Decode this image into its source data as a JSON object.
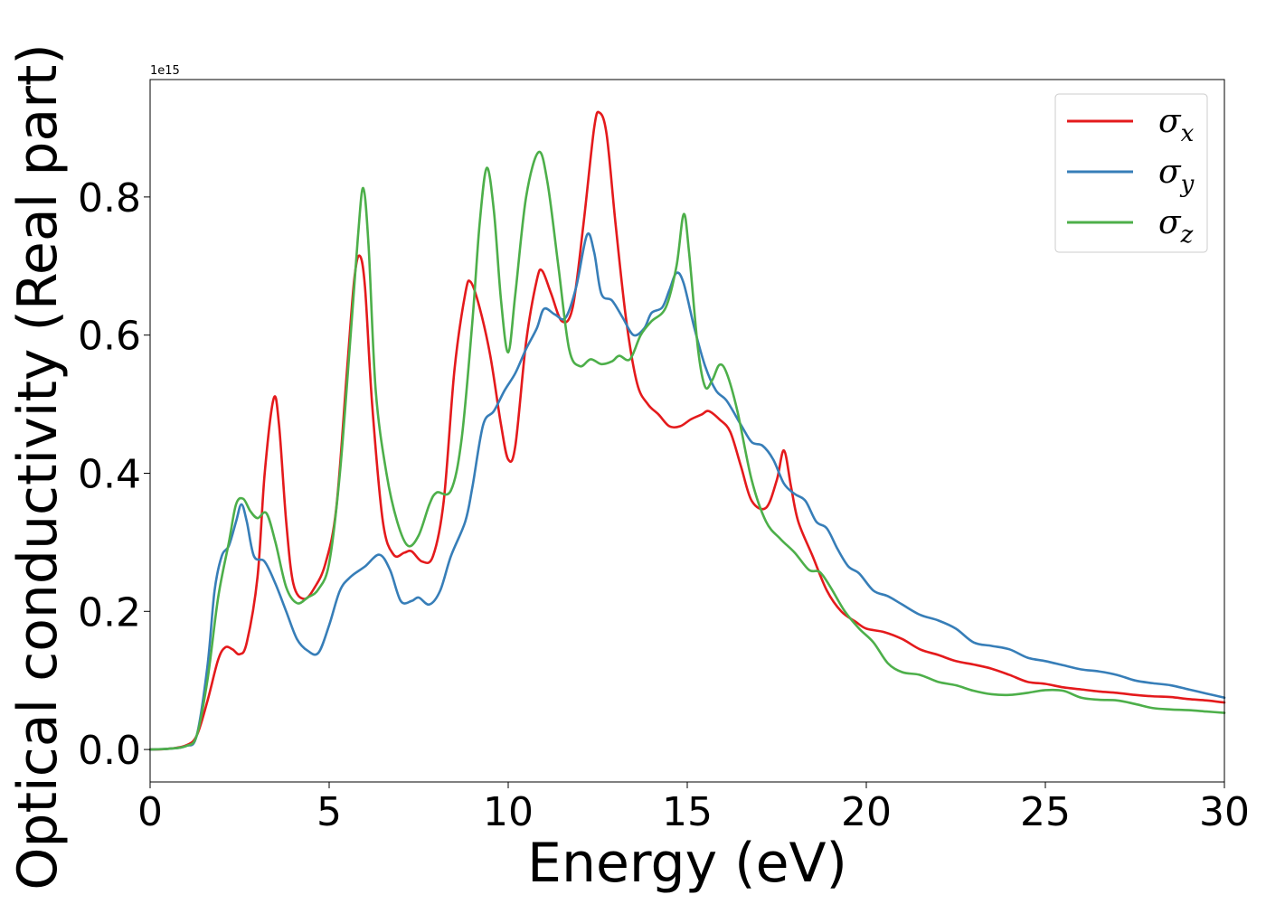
{
  "chart_data": {
    "type": "line",
    "xlabel": "Energy (eV)",
    "ylabel": "Optical conductivity (Real part)",
    "y_offset_text": "1e15",
    "xlim": [
      0,
      30
    ],
    "ylim": [
      -0.047,
      0.97
    ],
    "xticks": [
      0,
      5,
      10,
      15,
      20,
      25,
      30
    ],
    "xtick_labels": [
      "0",
      "5",
      "10",
      "15",
      "20",
      "25",
      "30"
    ],
    "yticks": [
      0.0,
      0.2,
      0.4,
      0.6,
      0.8
    ],
    "ytick_labels": [
      "0.0",
      "0.2",
      "0.4",
      "0.6",
      "0.8"
    ],
    "grid": false,
    "legend_position": "top-right",
    "series": [
      {
        "name": "σx",
        "legend_base": "σ",
        "legend_sub": "x",
        "color": "#e41a1c",
        "points": [
          [
            0,
            0.0
          ],
          [
            0.5,
            0.001
          ],
          [
            1.0,
            0.006
          ],
          [
            1.3,
            0.02
          ],
          [
            1.6,
            0.07
          ],
          [
            1.9,
            0.13
          ],
          [
            2.1,
            0.148
          ],
          [
            2.3,
            0.145
          ],
          [
            2.5,
            0.138
          ],
          [
            2.7,
            0.155
          ],
          [
            3.0,
            0.25
          ],
          [
            3.2,
            0.4
          ],
          [
            3.45,
            0.508
          ],
          [
            3.6,
            0.47
          ],
          [
            3.8,
            0.33
          ],
          [
            4.0,
            0.24
          ],
          [
            4.3,
            0.218
          ],
          [
            4.6,
            0.235
          ],
          [
            4.9,
            0.27
          ],
          [
            5.2,
            0.35
          ],
          [
            5.5,
            0.55
          ],
          [
            5.7,
            0.68
          ],
          [
            5.85,
            0.715
          ],
          [
            6.0,
            0.67
          ],
          [
            6.2,
            0.5
          ],
          [
            6.5,
            0.33
          ],
          [
            6.8,
            0.282
          ],
          [
            7.1,
            0.285
          ],
          [
            7.3,
            0.287
          ],
          [
            7.6,
            0.272
          ],
          [
            7.9,
            0.28
          ],
          [
            8.2,
            0.36
          ],
          [
            8.5,
            0.55
          ],
          [
            8.8,
            0.66
          ],
          [
            8.95,
            0.677
          ],
          [
            9.2,
            0.64
          ],
          [
            9.5,
            0.57
          ],
          [
            9.8,
            0.47
          ],
          [
            10.0,
            0.42
          ],
          [
            10.2,
            0.44
          ],
          [
            10.5,
            0.59
          ],
          [
            10.8,
            0.68
          ],
          [
            10.95,
            0.693
          ],
          [
            11.2,
            0.66
          ],
          [
            11.5,
            0.62
          ],
          [
            11.8,
            0.64
          ],
          [
            12.1,
            0.76
          ],
          [
            12.4,
            0.9
          ],
          [
            12.55,
            0.922
          ],
          [
            12.75,
            0.89
          ],
          [
            13.0,
            0.76
          ],
          [
            13.3,
            0.62
          ],
          [
            13.6,
            0.53
          ],
          [
            13.9,
            0.5
          ],
          [
            14.2,
            0.485
          ],
          [
            14.5,
            0.468
          ],
          [
            14.8,
            0.468
          ],
          [
            15.1,
            0.478
          ],
          [
            15.4,
            0.485
          ],
          [
            15.6,
            0.49
          ],
          [
            15.9,
            0.478
          ],
          [
            16.2,
            0.46
          ],
          [
            16.5,
            0.41
          ],
          [
            16.8,
            0.36
          ],
          [
            17.2,
            0.35
          ],
          [
            17.5,
            0.39
          ],
          [
            17.7,
            0.433
          ],
          [
            17.9,
            0.38
          ],
          [
            18.1,
            0.33
          ],
          [
            18.5,
            0.28
          ],
          [
            18.9,
            0.23
          ],
          [
            19.3,
            0.2
          ],
          [
            19.7,
            0.185
          ],
          [
            20.0,
            0.175
          ],
          [
            20.5,
            0.17
          ],
          [
            21.0,
            0.16
          ],
          [
            21.5,
            0.145
          ],
          [
            22.0,
            0.137
          ],
          [
            22.5,
            0.128
          ],
          [
            23.0,
            0.123
          ],
          [
            23.5,
            0.117
          ],
          [
            24.0,
            0.108
          ],
          [
            24.5,
            0.098
          ],
          [
            25.0,
            0.095
          ],
          [
            25.5,
            0.09
          ],
          [
            26.0,
            0.087
          ],
          [
            26.5,
            0.084
          ],
          [
            27.0,
            0.082
          ],
          [
            27.5,
            0.079
          ],
          [
            28.0,
            0.077
          ],
          [
            28.5,
            0.076
          ],
          [
            29.0,
            0.073
          ],
          [
            29.5,
            0.071
          ],
          [
            30.0,
            0.068
          ]
        ]
      },
      {
        "name": "σy",
        "legend_base": "σ",
        "legend_sub": "y",
        "color": "#377eb8",
        "points": [
          [
            0,
            0.0
          ],
          [
            0.5,
            0.001
          ],
          [
            1.0,
            0.005
          ],
          [
            1.3,
            0.02
          ],
          [
            1.6,
            0.12
          ],
          [
            1.8,
            0.23
          ],
          [
            2.0,
            0.28
          ],
          [
            2.2,
            0.295
          ],
          [
            2.4,
            0.33
          ],
          [
            2.55,
            0.355
          ],
          [
            2.7,
            0.33
          ],
          [
            2.9,
            0.28
          ],
          [
            3.2,
            0.272
          ],
          [
            3.5,
            0.24
          ],
          [
            3.8,
            0.2
          ],
          [
            4.1,
            0.16
          ],
          [
            4.4,
            0.143
          ],
          [
            4.7,
            0.14
          ],
          [
            5.0,
            0.18
          ],
          [
            5.3,
            0.23
          ],
          [
            5.6,
            0.25
          ],
          [
            6.0,
            0.265
          ],
          [
            6.4,
            0.282
          ],
          [
            6.7,
            0.26
          ],
          [
            7.0,
            0.215
          ],
          [
            7.3,
            0.215
          ],
          [
            7.5,
            0.22
          ],
          [
            7.8,
            0.21
          ],
          [
            8.1,
            0.23
          ],
          [
            8.4,
            0.28
          ],
          [
            8.8,
            0.33
          ],
          [
            9.0,
            0.38
          ],
          [
            9.3,
            0.47
          ],
          [
            9.6,
            0.49
          ],
          [
            9.9,
            0.52
          ],
          [
            10.2,
            0.545
          ],
          [
            10.5,
            0.58
          ],
          [
            10.8,
            0.61
          ],
          [
            11.0,
            0.638
          ],
          [
            11.3,
            0.63
          ],
          [
            11.6,
            0.625
          ],
          [
            11.9,
            0.67
          ],
          [
            12.2,
            0.745
          ],
          [
            12.4,
            0.72
          ],
          [
            12.6,
            0.66
          ],
          [
            12.9,
            0.65
          ],
          [
            13.2,
            0.625
          ],
          [
            13.5,
            0.6
          ],
          [
            13.8,
            0.61
          ],
          [
            14.0,
            0.632
          ],
          [
            14.3,
            0.64
          ],
          [
            14.5,
            0.665
          ],
          [
            14.7,
            0.69
          ],
          [
            14.9,
            0.675
          ],
          [
            15.2,
            0.61
          ],
          [
            15.5,
            0.555
          ],
          [
            15.8,
            0.52
          ],
          [
            16.1,
            0.505
          ],
          [
            16.5,
            0.47
          ],
          [
            16.8,
            0.445
          ],
          [
            17.1,
            0.44
          ],
          [
            17.4,
            0.42
          ],
          [
            17.7,
            0.385
          ],
          [
            18.0,
            0.37
          ],
          [
            18.3,
            0.36
          ],
          [
            18.6,
            0.33
          ],
          [
            18.9,
            0.32
          ],
          [
            19.2,
            0.29
          ],
          [
            19.5,
            0.265
          ],
          [
            19.8,
            0.255
          ],
          [
            20.2,
            0.23
          ],
          [
            20.6,
            0.222
          ],
          [
            21.0,
            0.21
          ],
          [
            21.5,
            0.195
          ],
          [
            22.0,
            0.187
          ],
          [
            22.5,
            0.175
          ],
          [
            23.0,
            0.155
          ],
          [
            23.5,
            0.15
          ],
          [
            24.0,
            0.145
          ],
          [
            24.5,
            0.133
          ],
          [
            25.0,
            0.128
          ],
          [
            25.5,
            0.122
          ],
          [
            26.0,
            0.116
          ],
          [
            26.5,
            0.113
          ],
          [
            27.0,
            0.108
          ],
          [
            27.5,
            0.1
          ],
          [
            28.0,
            0.096
          ],
          [
            28.5,
            0.093
          ],
          [
            29.0,
            0.087
          ],
          [
            29.5,
            0.081
          ],
          [
            30.0,
            0.075
          ]
        ]
      },
      {
        "name": "σz",
        "legend_base": "σ",
        "legend_sub": "z",
        "color": "#4daf4a",
        "points": [
          [
            0,
            0.0
          ],
          [
            0.5,
            0.001
          ],
          [
            1.0,
            0.005
          ],
          [
            1.3,
            0.02
          ],
          [
            1.6,
            0.1
          ],
          [
            1.9,
            0.22
          ],
          [
            2.2,
            0.3
          ],
          [
            2.4,
            0.355
          ],
          [
            2.6,
            0.363
          ],
          [
            2.8,
            0.345
          ],
          [
            3.0,
            0.335
          ],
          [
            3.25,
            0.342
          ],
          [
            3.5,
            0.3
          ],
          [
            3.8,
            0.235
          ],
          [
            4.1,
            0.212
          ],
          [
            4.4,
            0.22
          ],
          [
            4.7,
            0.232
          ],
          [
            5.0,
            0.27
          ],
          [
            5.3,
            0.4
          ],
          [
            5.6,
            0.6
          ],
          [
            5.8,
            0.74
          ],
          [
            5.95,
            0.813
          ],
          [
            6.1,
            0.73
          ],
          [
            6.3,
            0.52
          ],
          [
            6.6,
            0.4
          ],
          [
            6.9,
            0.33
          ],
          [
            7.2,
            0.295
          ],
          [
            7.5,
            0.31
          ],
          [
            7.8,
            0.355
          ],
          [
            8.0,
            0.372
          ],
          [
            8.4,
            0.375
          ],
          [
            8.7,
            0.45
          ],
          [
            9.0,
            0.62
          ],
          [
            9.2,
            0.76
          ],
          [
            9.4,
            0.842
          ],
          [
            9.6,
            0.78
          ],
          [
            9.8,
            0.65
          ],
          [
            10.0,
            0.575
          ],
          [
            10.2,
            0.66
          ],
          [
            10.5,
            0.8
          ],
          [
            10.85,
            0.865
          ],
          [
            11.1,
            0.82
          ],
          [
            11.4,
            0.7
          ],
          [
            11.7,
            0.58
          ],
          [
            12.0,
            0.555
          ],
          [
            12.3,
            0.565
          ],
          [
            12.6,
            0.558
          ],
          [
            12.9,
            0.562
          ],
          [
            13.1,
            0.57
          ],
          [
            13.4,
            0.565
          ],
          [
            13.7,
            0.6
          ],
          [
            14.0,
            0.62
          ],
          [
            14.4,
            0.64
          ],
          [
            14.7,
            0.7
          ],
          [
            14.9,
            0.775
          ],
          [
            15.05,
            0.72
          ],
          [
            15.3,
            0.58
          ],
          [
            15.5,
            0.525
          ],
          [
            15.7,
            0.535
          ],
          [
            15.9,
            0.557
          ],
          [
            16.1,
            0.545
          ],
          [
            16.4,
            0.49
          ],
          [
            16.8,
            0.39
          ],
          [
            17.2,
            0.33
          ],
          [
            17.6,
            0.305
          ],
          [
            18.0,
            0.285
          ],
          [
            18.4,
            0.26
          ],
          [
            18.7,
            0.257
          ],
          [
            19.0,
            0.235
          ],
          [
            19.4,
            0.2
          ],
          [
            19.8,
            0.175
          ],
          [
            20.2,
            0.155
          ],
          [
            20.6,
            0.125
          ],
          [
            21.0,
            0.112
          ],
          [
            21.5,
            0.108
          ],
          [
            22.0,
            0.098
          ],
          [
            22.5,
            0.093
          ],
          [
            23.0,
            0.085
          ],
          [
            23.5,
            0.08
          ],
          [
            24.0,
            0.079
          ],
          [
            24.5,
            0.082
          ],
          [
            25.0,
            0.086
          ],
          [
            25.5,
            0.085
          ],
          [
            26.0,
            0.075
          ],
          [
            26.5,
            0.072
          ],
          [
            27.0,
            0.071
          ],
          [
            27.5,
            0.066
          ],
          [
            28.0,
            0.06
          ],
          [
            28.5,
            0.058
          ],
          [
            29.0,
            0.057
          ],
          [
            29.5,
            0.055
          ],
          [
            30.0,
            0.053
          ]
        ]
      }
    ]
  }
}
